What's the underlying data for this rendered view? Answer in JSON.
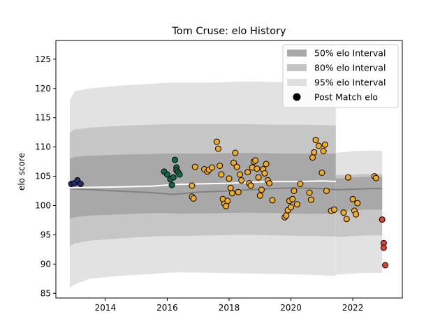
{
  "chart_data": {
    "type": "scatter",
    "title": "Tom Cruse: elo History",
    "xlabel": "",
    "ylabel": "elo score",
    "xlim": [
      2012.4,
      2023.6
    ],
    "ylim": [
      84.2,
      128.2
    ],
    "x_ticks": [
      2014,
      2016,
      2018,
      2020,
      2022
    ],
    "y_ticks": [
      85,
      90,
      95,
      100,
      105,
      110,
      115,
      120,
      125
    ],
    "grid": false,
    "legend_position": "top-right",
    "legend": [
      {
        "label": "50% elo Interval",
        "kind": "band",
        "color": "#a9a9a9"
      },
      {
        "label": "80% elo Interval",
        "kind": "band",
        "color": "#c4c4c4"
      },
      {
        "label": "95% elo Interval",
        "kind": "band",
        "color": "#e0e0e0"
      },
      {
        "label": "Post Match elo",
        "kind": "point",
        "color": "#000000"
      }
    ],
    "colors": {
      "band50": "#a8a8a8",
      "band80": "#c6c6c6",
      "band95": "#e2e2e2",
      "mean_line_history": "#ffffff",
      "mean_line_projection": "#808080",
      "navy": "#1f2f6b",
      "green": "#0b6a4c",
      "orange": "#f4ab1c",
      "red": "#de4531",
      "edge": "#000000"
    },
    "bands": [
      {
        "x": [
          2012.85,
          2013.0,
          2013.5,
          2014.5,
          2015.5,
          2016.0,
          2016.4,
          2017.5,
          2018.5,
          2019.5,
          2020.5,
          2021.45
        ],
        "lower95": [
          85.9,
          86.5,
          87.5,
          88.0,
          88.3,
          88.5,
          88.6,
          88.5,
          88.4,
          88.3,
          88.2,
          88.0
        ],
        "upper95": [
          118.0,
          119.5,
          120.0,
          120.5,
          120.8,
          121.0,
          121.0,
          121.0,
          121.2,
          121.1,
          121.0,
          121.0
        ],
        "lower80": [
          93.0,
          93.5,
          94.0,
          94.4,
          94.7,
          94.8,
          94.8,
          94.9,
          95.0,
          94.9,
          94.8,
          94.7
        ],
        "upper80": [
          112.5,
          113.0,
          113.3,
          113.6,
          113.8,
          113.9,
          113.9,
          113.9,
          113.9,
          113.8,
          113.8,
          113.7
        ],
        "lower50": [
          97.8,
          98.0,
          98.3,
          98.5,
          98.7,
          98.7,
          98.6,
          98.7,
          98.8,
          98.7,
          98.6,
          98.6
        ],
        "upper50": [
          108.0,
          108.3,
          108.5,
          108.7,
          108.8,
          108.9,
          108.9,
          108.9,
          109.0,
          108.9,
          108.9,
          108.9
        ]
      },
      {
        "x": [
          2021.45,
          2022.0,
          2022.5,
          2022.95
        ],
        "lower95": [
          88.2,
          88.4,
          88.5,
          88.5
        ],
        "upper95": [
          109.0,
          109.3,
          109.4,
          109.4
        ],
        "lower80": [
          94.6,
          94.8,
          94.9,
          94.9
        ],
        "upper80": [
          105.2,
          105.3,
          105.4,
          105.4
        ],
        "lower50": [
          99.0,
          99.2,
          99.3,
          99.3
        ],
        "upper50": [
          104.6,
          104.8,
          104.9,
          104.9
        ]
      }
    ],
    "mean_history": {
      "x": [
        2012.85,
        2013.5,
        2014.5,
        2015.5,
        2016.0,
        2016.3,
        2017.0,
        2018.0,
        2018.8,
        2019.5,
        2020.3,
        2021.0,
        2021.45
      ],
      "y": [
        103.0,
        103.1,
        103.2,
        103.3,
        103.5,
        103.6,
        103.7,
        103.8,
        104.0,
        104.1,
        104.1,
        104.2,
        104.1
      ]
    },
    "mean_projection": {
      "x": [
        2012.85,
        2014.0,
        2015.5,
        2016.2,
        2017.0,
        2018.0,
        2019.0,
        2020.0,
        2021.0,
        2021.45,
        2022.0,
        2022.5,
        2022.95
      ],
      "y": [
        102.9,
        102.6,
        102.2,
        101.9,
        102.3,
        102.5,
        102.8,
        103.0,
        102.9,
        102.7,
        102.8,
        102.9,
        102.9
      ]
    },
    "series": [
      {
        "color": "navy",
        "x": [
          2012.9,
          2013.0,
          2013.1,
          2013.2
        ],
        "y": [
          103.7,
          103.8,
          104.3,
          103.7
        ]
      },
      {
        "color": "green",
        "x": [
          2015.9,
          2016.0,
          2016.1,
          2016.15,
          2016.2,
          2016.25,
          2016.3,
          2016.3,
          2016.35,
          2016.4
        ],
        "y": [
          105.8,
          105.3,
          104.5,
          103.5,
          104.8,
          107.8,
          106.5,
          106.0,
          105.7,
          105.3
        ]
      },
      {
        "color": "orange",
        "x": [
          2016.8,
          2016.8,
          2016.85,
          2016.9,
          2017.2,
          2017.3,
          2017.35,
          2017.45,
          2017.6,
          2017.65,
          2017.7,
          2017.75,
          2017.8,
          2017.85,
          2017.9,
          2017.95,
          2018.0,
          2018.05,
          2018.1,
          2018.15,
          2018.2,
          2018.25,
          2018.3,
          2018.35,
          2018.4,
          2018.6,
          2018.65,
          2018.7,
          2018.75,
          2018.8,
          2018.85,
          2018.9,
          2018.95,
          2019.0,
          2019.05,
          2019.1,
          2019.15,
          2019.2,
          2019.25,
          2019.3,
          2019.4,
          2019.8,
          2019.85,
          2019.9,
          2019.95,
          2020.0,
          2020.05,
          2020.1,
          2020.2,
          2020.3,
          2020.6,
          2020.65,
          2020.7,
          2020.75,
          2020.8,
          2020.9,
          2021.0,
          2021.05,
          2021.1,
          2021.15,
          2021.3,
          2021.4,
          2021.7,
          2021.8,
          2021.85,
          2022.0,
          2022.05,
          2022.1,
          2022.15,
          2022.7,
          2022.75
        ],
        "y": [
          103.4,
          101.5,
          101.2,
          106.6,
          106.2,
          105.8,
          106.1,
          106.5,
          110.9,
          109.7,
          106.8,
          105.3,
          101.1,
          100.3,
          99.9,
          100.8,
          104.6,
          103.0,
          102.1,
          107.3,
          109.0,
          106.6,
          102.3,
          105.3,
          104.3,
          105.7,
          103.8,
          103.4,
          106.5,
          107.5,
          107.7,
          106.3,
          104.8,
          101.7,
          102.7,
          106.2,
          105.5,
          107.1,
          104.3,
          103.8,
          100.9,
          98.0,
          98.3,
          99.2,
          100.8,
          99.7,
          101.1,
          102.5,
          100.2,
          103.7,
          102.2,
          101.0,
          108.2,
          109.1,
          111.2,
          110.2,
          105.6,
          109.3,
          110.4,
          102.5,
          99.1,
          99.3,
          98.8,
          97.7,
          104.8,
          101.1,
          99.1,
          98.5,
          100.4,
          105.0,
          104.7
        ]
      },
      {
        "color": "red",
        "x": [
          2022.95,
          2023.0,
          2023.0,
          2023.05
        ],
        "y": [
          97.6,
          93.6,
          92.8,
          89.8
        ]
      }
    ]
  }
}
